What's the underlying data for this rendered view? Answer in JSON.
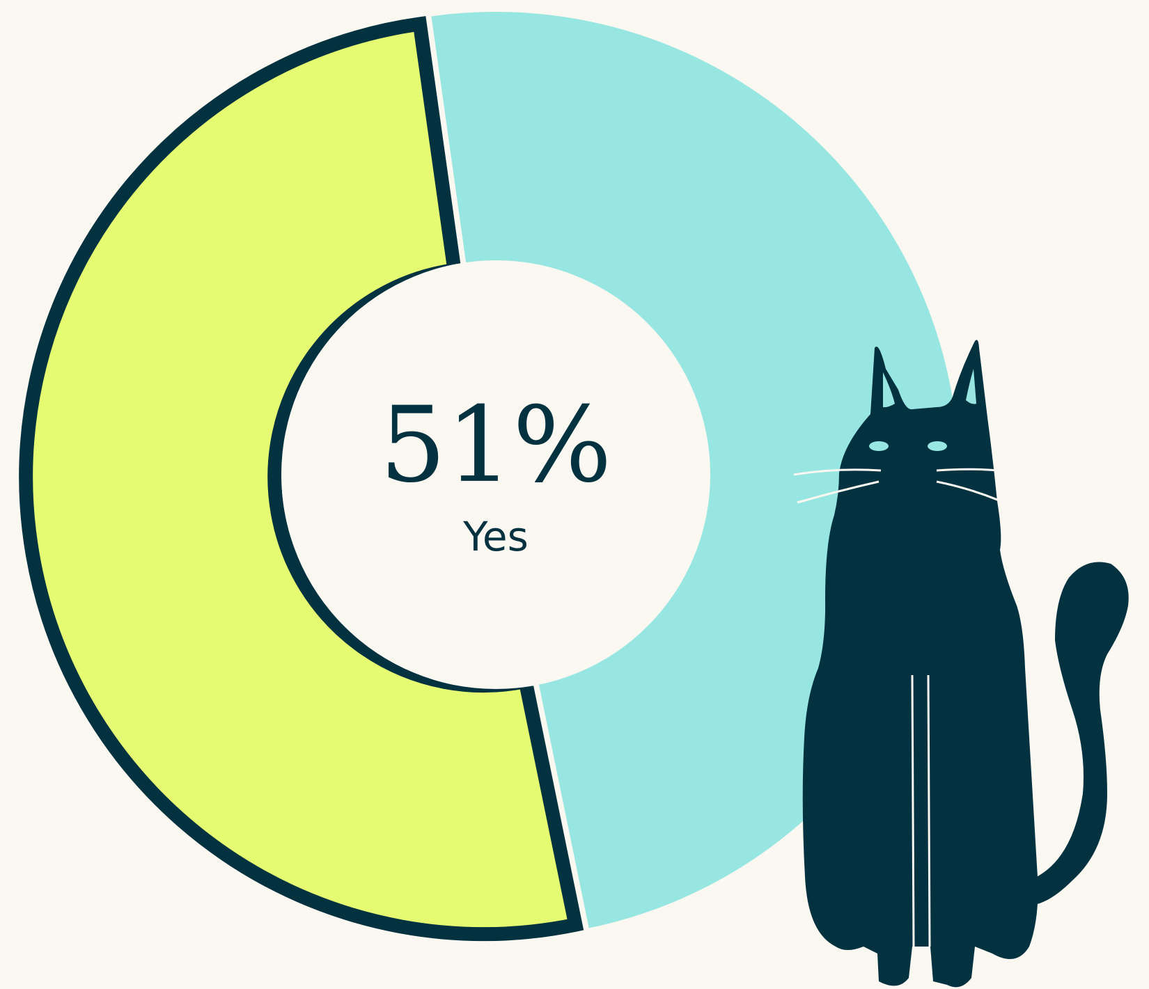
{
  "chart_data": {
    "type": "pie",
    "categories": [
      "Yes",
      null
    ],
    "values": [
      51,
      49
    ],
    "value_labels": [
      "51%",
      null
    ],
    "colors": [
      "#e5fb72",
      "#98e6e2"
    ]
  }
}
